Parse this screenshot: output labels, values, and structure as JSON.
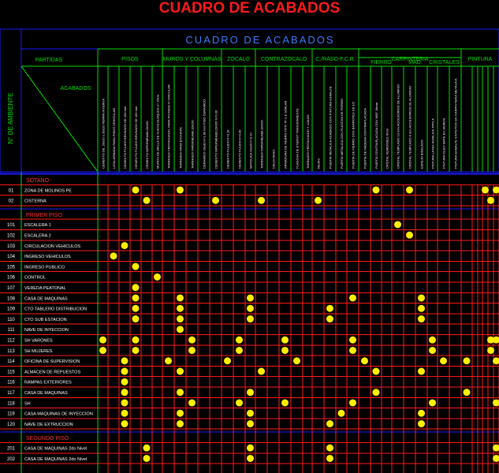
{
  "title": "CUADRO DE ACABADOS",
  "banner": "CUADRO DE ACABADOS",
  "left_header": "N° DE AMBIENTE",
  "partidas_label": "PARTIDAS",
  "acabados_label": "ACABADOS",
  "groups": [
    {
      "label": "PISOS"
    },
    {
      "label": "MUROS Y COLUMNAS"
    },
    {
      "label": "ZOCALO"
    },
    {
      "label": "CONTRAZOCALO"
    },
    {
      "label": "C./RASO-F.C.R."
    },
    {
      "label": "CARPINTERIA"
    },
    {
      "label": "PINTURA"
    }
  ],
  "subgroups": [
    {
      "label": "FIERRO"
    },
    {
      "label": "MAD."
    },
    {
      "label": "CRISTALES"
    }
  ],
  "columns": [
    "CEMENTO DE .20x20 x 20x20 TIERRA INTERNA",
    "LOSA ARMADA PARA PISOS VEHICULAR",
    "CEMENTO PULIDO BRUNADO DE 150 mm",
    "CEMENTO PULIDO BRUNADO DE 150 mm",
    "CEMENTO IMPERMEABILIZADO",
    "MUROS DE MALLA DE NUEVE BLOQUES e= 20cm",
    "TARRAJEO FROTACHADO, PARA PINTADO O CIRCULAR",
    "TARRAJEO PARA ENCHAPE",
    "TARRAJEO IMPERMEABILIZADO",
    "CERAMICO 20x30 h=1.80 mm PISO CERAMICO",
    "CEMENTO IMPERMEABILIZADO h=0.30",
    "CEMENTO PULIDO h=0.10",
    "CEMENTO PULIDO h=0.30",
    "MAYOLICA 20x20 h=0.10",
    "TARRAJEO IMPERMEABILIZADO",
    "CIELO RASO",
    "ARMADURA DE FIERRO TIPO TF-1 E SIMILAR",
    "PLANCHA DE ETERNIT TRANSPARENTE",
    "TARRAJEO FROTACHADO Y LIJADO",
    "REJAS",
    "PUERTA METALICA ACABADO CON PINTURA ESMALTE",
    "PUERTA METALICA CON PLANCHA DE FIERRO",
    "PUERTA DE FIERRO CON BARROTES DE 1/2",
    "PUERTA DE MADERA CONTRAPLACADA",
    "PUERTA CONTRAPLACADA CON MDF 18mm",
    "CRISTAL SEMIDOBLE 6mm",
    "CRISTAL TEMPLADO 10 mm ACCESORIOS DE ALUMINIO",
    "CRISTAL TEMPLADO 8 mm ACCESORIOS DE ALUMINIO",
    "ESPEJO BISELADO",
    "PINTURA LATEX ACRILICA TIPO A",
    "PINTURA OLEO MATE EN MUROS",
    "PINTURA ESMALTE SINTETICO EN CARPINTERIA METALICA"
  ],
  "sections": [
    {
      "label": "SOTANO",
      "rows": [
        {
          "num": "01",
          "name": "ZONA DE MOLINOS PE",
          "marks": [
            3,
            7,
            24,
            27,
            35,
            37
          ]
        },
        {
          "num": "02",
          "name": "CISTERNA",
          "marks": [
            4,
            10,
            14,
            19,
            36
          ]
        }
      ]
    },
    {
      "label": "PRIMER PISO",
      "rows": [
        {
          "num": "101",
          "name": "ESCALERA 1",
          "marks": [
            26
          ]
        },
        {
          "num": "102",
          "name": "ESCALERA 2",
          "marks": [
            27
          ]
        },
        {
          "num": "103",
          "name": "CIRCULACION VEHICULOS",
          "marks": [
            2
          ]
        },
        {
          "num": "104",
          "name": "INGRESO VEHICULOS",
          "marks": [
            1
          ]
        },
        {
          "num": "105",
          "name": "INGRESO PUBLICO",
          "marks": [
            3
          ]
        },
        {
          "num": "106",
          "name": "CONTROL",
          "marks": [
            5
          ]
        },
        {
          "num": "107",
          "name": "VEREDA PEATONAL",
          "marks": [
            3
          ]
        },
        {
          "num": "108",
          "name": "CASA DE MAQUINAS",
          "marks": [
            3,
            7,
            13,
            22,
            28
          ]
        },
        {
          "num": "109",
          "name": "CTO TABLERO DISTRIBUCION",
          "marks": [
            3,
            7,
            13,
            20,
            28
          ]
        },
        {
          "num": "110",
          "name": "CTO SUB ESTACION",
          "marks": [
            3,
            7,
            13,
            20,
            28
          ]
        },
        {
          "num": "111",
          "name": "NAVE DE INYECCION",
          "marks": [
            7
          ]
        },
        {
          "num": "112",
          "name": "SH VARONES",
          "marks": [
            0,
            3,
            8,
            12,
            16,
            22,
            29,
            36,
            37,
            38
          ]
        },
        {
          "num": "113",
          "name": "SH MUJERES",
          "marks": [
            0,
            3,
            8,
            12,
            16,
            22,
            29,
            36,
            38
          ]
        },
        {
          "num": "114",
          "name": "OFICINA DE SUPERVISION",
          "marks": [
            2,
            6,
            11,
            17,
            23,
            30,
            32,
            37
          ]
        },
        {
          "num": "115",
          "name": "ALMACEN DE REPUESTOS",
          "marks": [
            2,
            7,
            14,
            24,
            28
          ]
        },
        {
          "num": "116",
          "name": "RAMPAS EXTERIORES",
          "marks": [
            2
          ]
        },
        {
          "num": "117",
          "name": "CASA DE MAQUINAS",
          "marks": [
            2,
            7,
            13,
            24,
            32
          ]
        },
        {
          "num": "118",
          "name": "SH",
          "marks": [
            2,
            8,
            12,
            16,
            22,
            29,
            37,
            38
          ]
        },
        {
          "num": "119",
          "name": "CASA MAQUINAS DE INYECCION",
          "marks": [
            2,
            7,
            13,
            21,
            28
          ]
        },
        {
          "num": "120",
          "name": "NAVE DE EXTRUCCION",
          "marks": [
            2,
            7,
            13,
            20,
            28
          ]
        }
      ]
    },
    {
      "label": "SEGUNDO PISO",
      "rows": [
        {
          "num": "201",
          "name": "CASA DE MAQUINAS 2do Nivel",
          "marks": [
            4,
            13,
            20,
            37
          ]
        },
        {
          "num": "202",
          "name": "CASA DE MAQUINAS 2do Nivel",
          "marks": [
            4,
            13,
            20,
            37
          ]
        }
      ]
    }
  ],
  "colors": {
    "grid": "#ff1a1a",
    "header_lines": "#1a1aff",
    "header_text": "#3a7bff",
    "text": "#ffffff",
    "green": "#00e000",
    "section": "#ff3333",
    "dot": "#ffee00",
    "title": "#ff1a1a"
  }
}
